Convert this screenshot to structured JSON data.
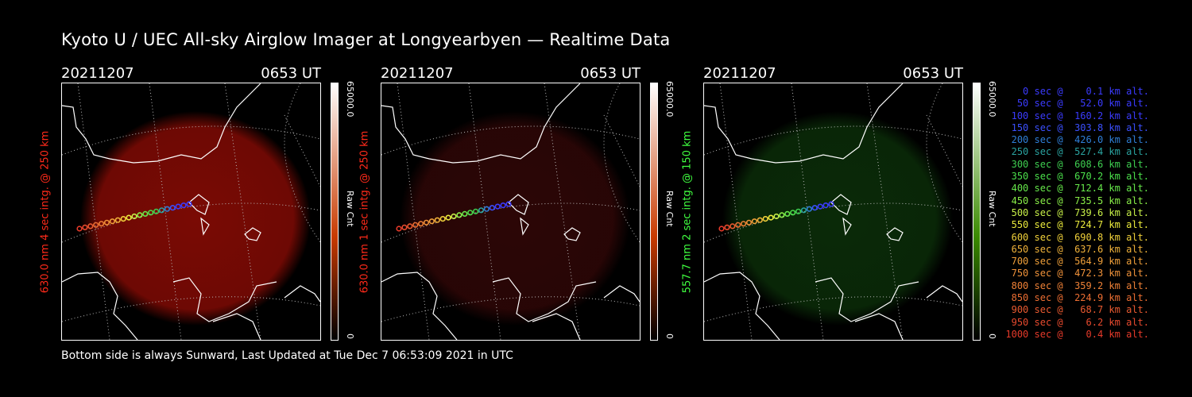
{
  "title": "Kyoto U / UEC All-sky Airglow Imager at Longyearbyen — Realtime Data",
  "footer": "Bottom side is always Sunward, Last Updated at Tue Dec  7 06:53:09 2021 in UTC",
  "panels": [
    {
      "date": "20211207",
      "time": "0653 UT",
      "label": "630.0 nm 4 sec intg. @ 250 km",
      "label_color": "#ff2a1a",
      "cbar_max": "65000.0",
      "cbar_min": "0",
      "cbar_unit": "Raw Cnt",
      "glow": "#7a0a04",
      "cbar_hi": "#c83a00"
    },
    {
      "date": "20211207",
      "time": "0653 UT",
      "label": "630.0 nm 1 sec intg. @ 250 km",
      "label_color": "#ff2a1a",
      "cbar_max": "65000.0",
      "cbar_min": "0",
      "cbar_unit": "Raw Cnt",
      "glow": "#2c0606",
      "cbar_hi": "#c83a00"
    },
    {
      "date": "20211207",
      "time": "0653 UT",
      "label": "557.7 nm 2 sec intg. @ 150 km",
      "label_color": "#40ff40",
      "cbar_max": "65000.0",
      "cbar_min": "0",
      "cbar_unit": "Raw Cnt",
      "glow": "#0a2a08",
      "cbar_hi": "#3a8a00"
    }
  ],
  "legend": [
    {
      "text": "   0 sec @    0.1 km alt.",
      "color": "#3b3bff"
    },
    {
      "text": "  50 sec @   52.0 km alt.",
      "color": "#3b3bff"
    },
    {
      "text": " 100 sec @  160.2 km alt.",
      "color": "#3b3bff"
    },
    {
      "text": " 150 sec @  303.8 km alt.",
      "color": "#3b50ff"
    },
    {
      "text": " 200 sec @  426.0 km alt.",
      "color": "#2f7fd8"
    },
    {
      "text": " 250 sec @  527.4 km alt.",
      "color": "#2aa3a0"
    },
    {
      "text": " 300 sec @  608.6 km alt.",
      "color": "#3ecf50"
    },
    {
      "text": " 350 sec @  670.2 km alt.",
      "color": "#4be04b"
    },
    {
      "text": " 400 sec @  712.4 km alt.",
      "color": "#66e84a"
    },
    {
      "text": " 450 sec @  735.5 km alt.",
      "color": "#8aef48"
    },
    {
      "text": " 500 sec @  739.6 km alt.",
      "color": "#c8f048"
    },
    {
      "text": " 550 sec @  724.7 km alt.",
      "color": "#ecec3c"
    },
    {
      "text": " 600 sec @  690.8 km alt.",
      "color": "#f2d23a"
    },
    {
      "text": " 650 sec @  637.6 km alt.",
      "color": "#f0b23a"
    },
    {
      "text": " 700 sec @  564.9 km alt.",
      "color": "#f0a03a"
    },
    {
      "text": " 750 sec @  472.3 km alt.",
      "color": "#f0923a"
    },
    {
      "text": " 800 sec @  359.2 km alt.",
      "color": "#ee8036"
    },
    {
      "text": " 850 sec @  224.9 km alt.",
      "color": "#ec6e32"
    },
    {
      "text": " 900 sec @   68.7 km alt.",
      "color": "#ea5a30"
    },
    {
      "text": " 950 sec @    6.2 km alt.",
      "color": "#e84a2e"
    },
    {
      "text": "1000 sec @    0.4 km alt.",
      "color": "#e63a2a"
    }
  ]
}
